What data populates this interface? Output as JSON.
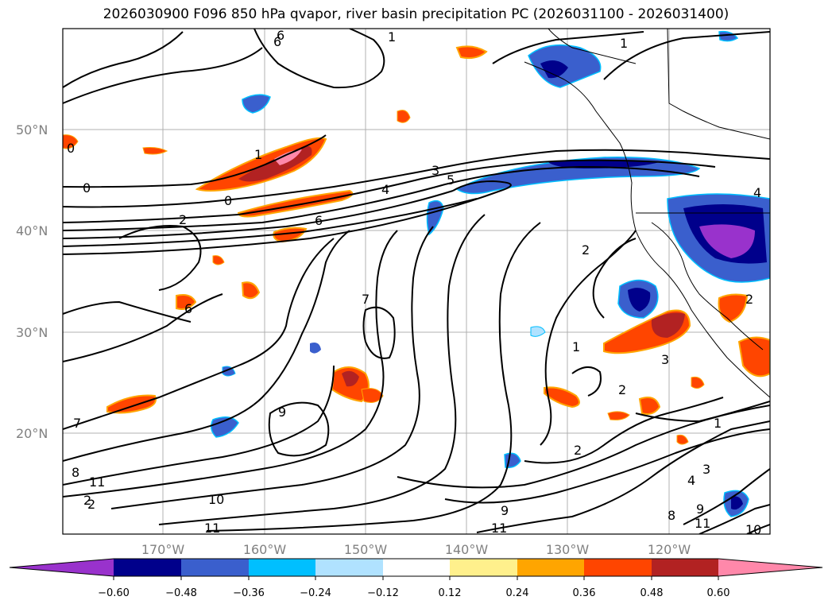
{
  "title": "2026030900 F096 850 hPa qvapor, river basin precipitation PC (2026031100 - 2026031400)",
  "lat_labels": [
    "50°N",
    "40°N",
    "30°N",
    "20°N"
  ],
  "lon_labels": [
    "170°W",
    "160°W",
    "150°W",
    "140°W",
    "130°W",
    "120°W"
  ],
  "colorbar": {
    "colors": [
      "#9932cc",
      "#00008b",
      "#3a5fcd",
      "#00bfff",
      "#b0e2ff",
      "#ffffff",
      "#fff08c",
      "#ffa500",
      "#ff4500",
      "#b22222",
      "#ff88aa",
      "#ff88aa"
    ],
    "under_color": "#9932cc",
    "over_color": "#ff88aa",
    "tick_labels": [
      "−0.60",
      "−0.48",
      "−0.36",
      "−0.24",
      "−0.12",
      "0.12",
      "0.24",
      "0.36",
      "0.48",
      "0.60"
    ]
  },
  "contour_labels": [
    {
      "text": "1"
    },
    {
      "text": "0"
    },
    {
      "text": "0"
    },
    {
      "text": "2"
    },
    {
      "text": "0"
    },
    {
      "text": "1"
    },
    {
      "text": "3"
    },
    {
      "text": "5"
    },
    {
      "text": "4"
    },
    {
      "text": "6"
    },
    {
      "text": "2"
    },
    {
      "text": "6"
    },
    {
      "text": "6"
    },
    {
      "text": "7"
    },
    {
      "text": "2"
    },
    {
      "text": "1"
    },
    {
      "text": "2"
    },
    {
      "text": "3"
    },
    {
      "text": "2"
    },
    {
      "text": "9"
    },
    {
      "text": "7"
    },
    {
      "text": "8"
    },
    {
      "text": "11"
    },
    {
      "text": "2"
    },
    {
      "text": "10"
    },
    {
      "text": "11"
    },
    {
      "text": "9"
    },
    {
      "text": "11"
    },
    {
      "text": "1"
    },
    {
      "text": "3"
    },
    {
      "text": "4"
    },
    {
      "text": "8"
    },
    {
      "text": "9"
    },
    {
      "text": "11"
    },
    {
      "text": "10"
    },
    {
      "text": "2"
    },
    {
      "text": "1"
    },
    {
      "text": "4"
    },
    {
      "text": "6"
    }
  ]
}
